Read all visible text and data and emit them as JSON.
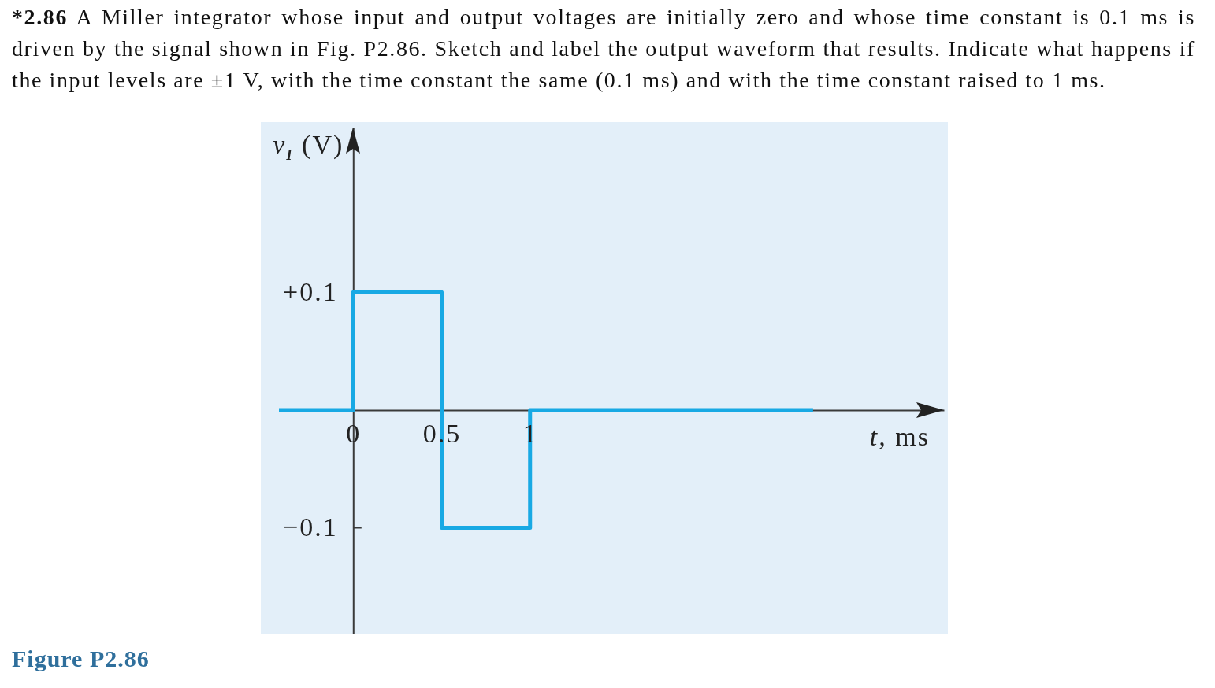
{
  "chart_data": {
    "type": "step",
    "title": "*2.86 A Miller integrator whose input and output voltages are initially zero and whose time constant is 0.1 ms is driven by the signal shown in Fig. P2.86. Sketch and label the output waveform that results. Indicate what happens if the input levels are ±1 V, with the time constant the same (0.1 ms) and with the time constant raised to 1 ms.",
    "xlabel": "t, ms",
    "ylabel": "v$_{I}$ (V)",
    "annotations": [
      "Figure P2.86"
    ],
    "x": [
      -0.42,
      0,
      0.5,
      1,
      2.6
    ],
    "series": [
      {
        "color": "#18a9e4",
        "values": [
          0,
          0.1,
          -0.1,
          0,
          0
        ]
      }
    ],
    "xlim": [
      -0.42,
      3.34
    ],
    "ylim": [
      -0.19,
      0.24
    ],
    "xticks": [
      0,
      0.5,
      1
    ],
    "yticks": [
      {
        "value": 0.1,
        "label": "+0.1"
      },
      {
        "value": -0.1,
        "label": "−0.1"
      }
    ]
  }
}
